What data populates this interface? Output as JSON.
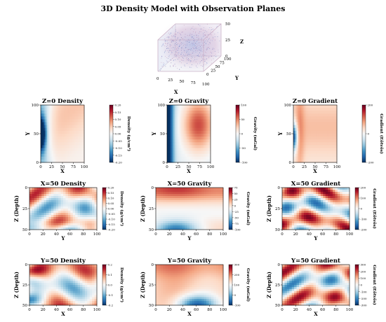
{
  "title": "3D Density Model with Observation Planes",
  "cube": {
    "x_label": "X",
    "y_label": "Y",
    "z_label": "Z",
    "x_ticks": [
      "0",
      "25",
      "50",
      "75",
      "100"
    ],
    "y_ticks": [
      "0",
      "25",
      "50",
      "75",
      "100"
    ],
    "z_ticks": [
      "0",
      "25",
      "50"
    ]
  },
  "chart_data": [
    {
      "type": "heatmap",
      "title": "Z=0 Density",
      "xlabel": "X",
      "ylabel": "Y",
      "xlim": [
        0,
        100
      ],
      "ylim": [
        0,
        100
      ],
      "xticks": [
        "0",
        "25",
        "50",
        "75",
        "100"
      ],
      "yticks": [
        "0",
        "50",
        "100"
      ],
      "colorbar": {
        "label": "Density (g/cm³)",
        "range": [
          -0.2,
          0.2
        ],
        "ticks": [
          "-0.20",
          "-0.15",
          "-0.10",
          "-0.05",
          "0.00",
          "0.05",
          "0.10",
          "0.15",
          "0.20"
        ]
      }
    },
    {
      "type": "heatmap",
      "title": "Z=0 Gravity",
      "xlabel": "X",
      "ylabel": "Y",
      "xlim": [
        0,
        100
      ],
      "ylim": [
        0,
        100
      ],
      "xticks": [
        "0",
        "25",
        "50",
        "75",
        "100"
      ],
      "yticks": [
        "0",
        "50",
        "100"
      ],
      "colorbar": {
        "label": "Gravity (mGal)",
        "range": [
          -100,
          100
        ],
        "ticks": [
          "-100",
          "-50",
          "0",
          "50",
          "100"
        ]
      }
    },
    {
      "type": "heatmap",
      "title": "Z=0 Gradient",
      "xlabel": "X",
      "ylabel": "Y",
      "xlim": [
        0,
        100
      ],
      "ylim": [
        0,
        100
      ],
      "xticks": [
        "0",
        "25",
        "50",
        "75",
        "100"
      ],
      "yticks": [
        "0",
        "50",
        "100"
      ],
      "colorbar": {
        "label": "Gradient (Eötvös)",
        "range": [
          -200,
          200
        ],
        "ticks": [
          "-200",
          "0",
          "200"
        ]
      }
    },
    {
      "type": "heatmap",
      "title": "X=50 Density",
      "xlabel": "Y",
      "ylabel": "Z (Depth)",
      "xlim": [
        0,
        100
      ],
      "ylim": [
        50,
        0
      ],
      "xticks": [
        "0",
        "20",
        "40",
        "60",
        "80",
        "100"
      ],
      "yticks": [
        "0",
        "25",
        "50"
      ],
      "colorbar": {
        "label": "Density (g/cm³)",
        "range": [
          -0.2,
          0.2
        ],
        "ticks": [
          "-0.20",
          "-0.15",
          "-0.10",
          "-0.05",
          "0.00",
          "0.05",
          "0.10",
          "0.15",
          "0.20"
        ]
      }
    },
    {
      "type": "heatmap",
      "title": "X=50 Gravity",
      "xlabel": "Y",
      "ylabel": "Z (Depth)",
      "xlim": [
        0,
        100
      ],
      "ylim": [
        50,
        0
      ],
      "xticks": [
        "0",
        "20",
        "40",
        "60",
        "80",
        "100"
      ],
      "yticks": [
        "0",
        "25",
        "50"
      ],
      "colorbar": {
        "label": "Gravity (mGal)",
        "range": [
          -100,
          75
        ],
        "ticks": [
          "-100",
          "-75",
          "-50",
          "-25",
          "0",
          "25",
          "50",
          "75"
        ]
      }
    },
    {
      "type": "heatmap",
      "title": "X=50 Gradient",
      "xlabel": "Y",
      "ylabel": "Z (Depth)",
      "xlim": [
        0,
        100
      ],
      "ylim": [
        50,
        0
      ],
      "xticks": [
        "0",
        "20",
        "40",
        "60",
        "80",
        "100"
      ],
      "yticks": [
        "0",
        "25",
        "50"
      ],
      "colorbar": {
        "label": "Gradient (Eötvös)",
        "range": [
          -200,
          200
        ],
        "ticks": [
          "-200",
          "-100",
          "0",
          "100",
          "200"
        ]
      }
    },
    {
      "type": "heatmap",
      "title": "Y=50 Density",
      "xlabel": "X",
      "ylabel": "Z (Depth)",
      "xlim": [
        0,
        100
      ],
      "ylim": [
        50,
        0
      ],
      "xticks": [
        "0",
        "20",
        "40",
        "60",
        "80",
        "100"
      ],
      "yticks": [
        "0",
        "25",
        "50"
      ],
      "colorbar": {
        "label": "Density (g/cm³)",
        "range": [
          -0.2,
          0.2
        ],
        "ticks": [
          "-0.2",
          "-0.1",
          "0.0",
          "0.1",
          "0.2"
        ]
      }
    },
    {
      "type": "heatmap",
      "title": "Y=50 Gravity",
      "xlabel": "X",
      "ylabel": "Z (Depth)",
      "xlim": [
        0,
        100
      ],
      "ylim": [
        50,
        0
      ],
      "xticks": [
        "0",
        "20",
        "40",
        "60",
        "80",
        "100"
      ],
      "yticks": [
        "0",
        "25",
        "50"
      ],
      "colorbar": {
        "label": "Gravity (mGal)",
        "range": [
          -100,
          300
        ],
        "ticks": [
          "-100",
          "0",
          "100",
          "200",
          "300"
        ]
      }
    },
    {
      "type": "heatmap",
      "title": "Y=50 Gradient",
      "xlabel": "X",
      "ylabel": "Z (Depth)",
      "xlim": [
        0,
        100
      ],
      "ylim": [
        50,
        0
      ],
      "xticks": [
        "0",
        "20",
        "40",
        "60",
        "80",
        "100"
      ],
      "yticks": [
        "0",
        "25",
        "50"
      ],
      "colorbar": {
        "label": "Gradient (Eötvös)",
        "range": [
          -300,
          300
        ],
        "ticks": [
          "-300",
          "-200",
          "-100",
          "0",
          "100",
          "200",
          "300"
        ]
      }
    }
  ]
}
